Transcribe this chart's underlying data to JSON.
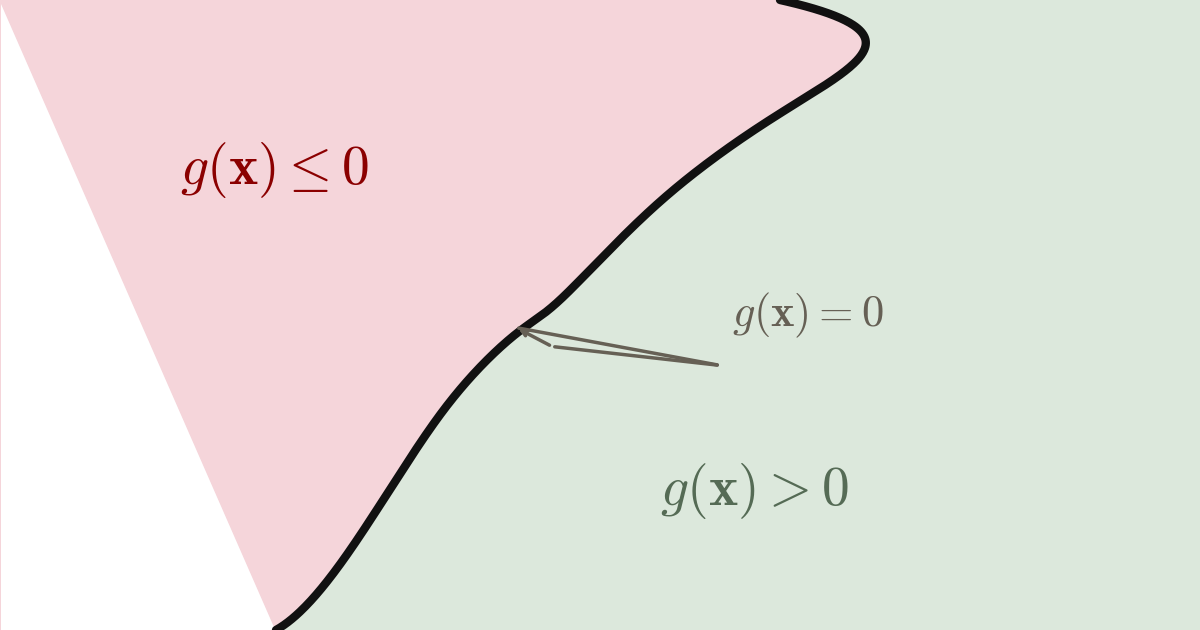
{
  "bg_color": "#ffffff",
  "failure_color": "#f5d5da",
  "safe_color": "#dce8dc",
  "curve_color": "#111111",
  "curve_linewidth": 6,
  "label_failure": "$g(\\mathbf{x}) \\leq 0$",
  "label_safe": "$g(\\mathbf{x}) > 0$",
  "label_boundary": "$g(\\mathbf{x}) = 0$",
  "label_failure_color": "#8b0000",
  "label_safe_color": "#556b55",
  "label_boundary_color": "#666055",
  "label_failure_fontsize": 40,
  "label_safe_fontsize": 40,
  "label_boundary_fontsize": 32,
  "arrow_color": "#666055",
  "arrow_linewidth": 2.5,
  "figsize": [
    12.0,
    6.3
  ]
}
